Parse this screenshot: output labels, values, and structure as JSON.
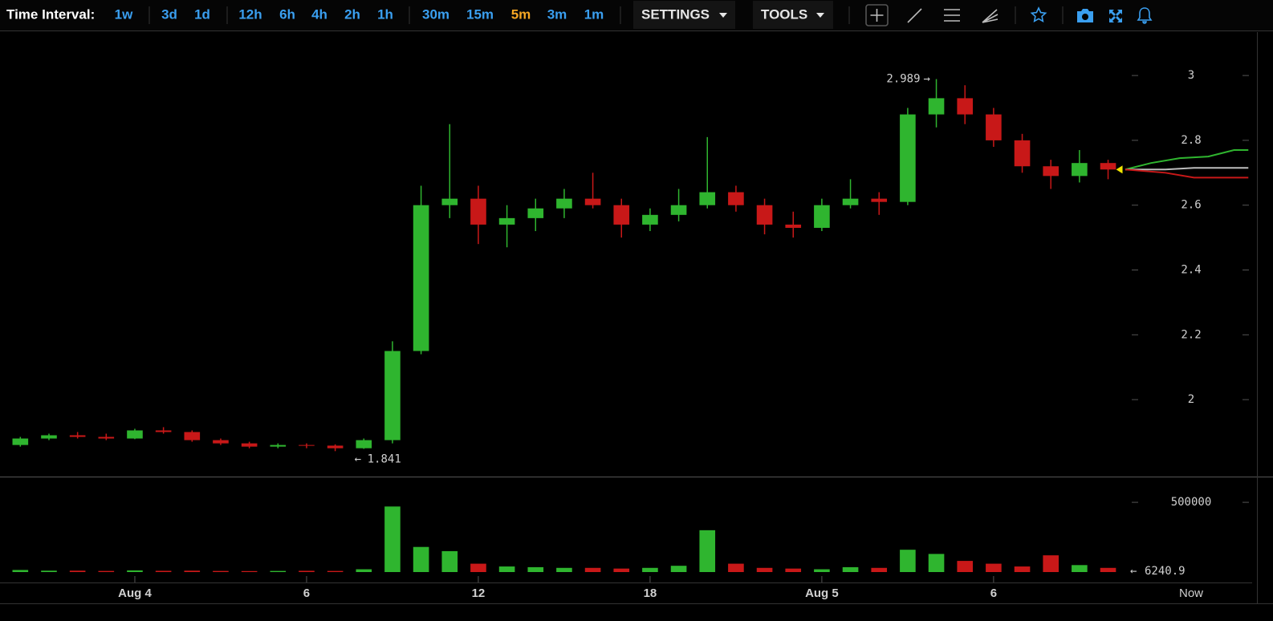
{
  "toolbar": {
    "label": "Time Interval:",
    "intervals": [
      "1w",
      "3d",
      "1d",
      "12h",
      "6h",
      "4h",
      "2h",
      "1h",
      "30m",
      "15m",
      "5m",
      "3m",
      "1m"
    ],
    "active": "5m",
    "settings": "SETTINGS",
    "tools": "TOOLS"
  },
  "chart_data": {
    "type": "candlestick",
    "up_color": "#2fb52f",
    "down_color": "#c81818",
    "x": [
      -4,
      -3,
      -2,
      -1,
      0,
      1,
      2,
      3,
      4,
      5,
      6,
      7,
      8,
      9,
      10,
      11,
      12,
      13,
      14,
      15,
      16,
      17,
      18,
      19,
      20,
      21,
      22,
      23,
      24,
      25,
      26,
      27,
      28,
      29,
      30,
      31,
      32,
      33,
      34
    ],
    "open": [
      1.86,
      1.88,
      1.89,
      1.885,
      1.88,
      1.905,
      1.9,
      1.875,
      1.865,
      1.855,
      1.86,
      1.858,
      1.85,
      1.875,
      2.15,
      2.6,
      2.62,
      2.54,
      2.56,
      2.59,
      2.62,
      2.6,
      2.54,
      2.57,
      2.6,
      2.64,
      2.6,
      2.54,
      2.53,
      2.6,
      2.62,
      2.61,
      2.88,
      2.93,
      2.88,
      2.8,
      2.72,
      2.69,
      2.73
    ],
    "high": [
      1.885,
      1.895,
      1.9,
      1.895,
      1.91,
      1.915,
      1.905,
      1.88,
      1.87,
      1.865,
      1.865,
      1.862,
      1.88,
      2.18,
      2.66,
      2.85,
      2.66,
      2.6,
      2.62,
      2.65,
      2.7,
      2.62,
      2.59,
      2.65,
      2.81,
      2.66,
      2.62,
      2.58,
      2.62,
      2.68,
      2.64,
      2.9,
      2.989,
      2.97,
      2.9,
      2.82,
      2.74,
      2.77,
      2.74
    ],
    "low": [
      1.855,
      1.875,
      1.88,
      1.875,
      1.878,
      1.895,
      1.87,
      1.86,
      1.85,
      1.85,
      1.85,
      1.841,
      1.848,
      1.865,
      2.14,
      2.56,
      2.48,
      2.47,
      2.52,
      2.56,
      2.59,
      2.5,
      2.52,
      2.55,
      2.59,
      2.58,
      2.51,
      2.5,
      2.52,
      2.59,
      2.57,
      2.6,
      2.84,
      2.85,
      2.78,
      2.7,
      2.65,
      2.67,
      2.68
    ],
    "close": [
      1.88,
      1.89,
      1.885,
      1.88,
      1.905,
      1.9,
      1.875,
      1.865,
      1.855,
      1.86,
      1.858,
      1.85,
      1.875,
      2.15,
      2.6,
      2.62,
      2.54,
      2.56,
      2.59,
      2.62,
      2.6,
      2.54,
      2.57,
      2.6,
      2.64,
      2.6,
      2.54,
      2.53,
      2.6,
      2.62,
      2.61,
      2.88,
      2.93,
      2.88,
      2.8,
      2.72,
      2.69,
      2.73,
      2.71
    ],
    "volume": [
      15000,
      10000,
      10000,
      8000,
      12000,
      9000,
      10000,
      8000,
      7000,
      8000,
      9000,
      8000,
      20000,
      470000,
      180000,
      150000,
      60000,
      40000,
      35000,
      30000,
      30000,
      25000,
      30000,
      45000,
      300000,
      60000,
      30000,
      25000,
      20000,
      35000,
      30000,
      160000,
      130000,
      80000,
      60000,
      40000,
      120000,
      50000,
      30000
    ],
    "xlim": [
      -4.71,
      38.92
    ],
    "xticks": [
      {
        "value": 0,
        "label": "Aug 4"
      },
      6,
      12,
      18,
      {
        "value": 24,
        "label": "Aug 5"
      },
      {
        "value": 30,
        "label": "6"
      }
    ],
    "now_label": "Now",
    "ylim": [
      1.765,
      3.134
    ],
    "yticks": [
      2,
      2.2,
      2.4,
      2.6,
      2.8,
      3
    ],
    "volume_ylim": [
      0,
      650000
    ],
    "volume_yticks": [
      500000
    ],
    "high_marker": {
      "x": 28,
      "value": 2.989,
      "arrow": "→"
    },
    "low_marker": {
      "x": 7,
      "value": 1.841,
      "arrow": "←"
    },
    "last_volume": {
      "value": 6240.9,
      "arrow": "←",
      "color": "#f2e600"
    },
    "last_price": {
      "value": 2.71,
      "color": "#f2e600"
    },
    "projections": [
      {
        "color": "#2fb52f",
        "x": [
          34.6,
          35.5,
          36.5,
          37.5,
          38.4,
          38.9
        ],
        "values": [
          2.71,
          2.73,
          2.745,
          2.75,
          2.77,
          2.77
        ]
      },
      {
        "color": "#bdbdbd",
        "x": [
          34.6,
          36,
          37,
          38.9
        ],
        "values": [
          2.71,
          2.71,
          2.715,
          2.715
        ]
      },
      {
        "color": "#c81818",
        "x": [
          34.6,
          36,
          37,
          38.9
        ],
        "values": [
          2.71,
          2.7,
          2.685,
          2.685
        ]
      }
    ]
  }
}
